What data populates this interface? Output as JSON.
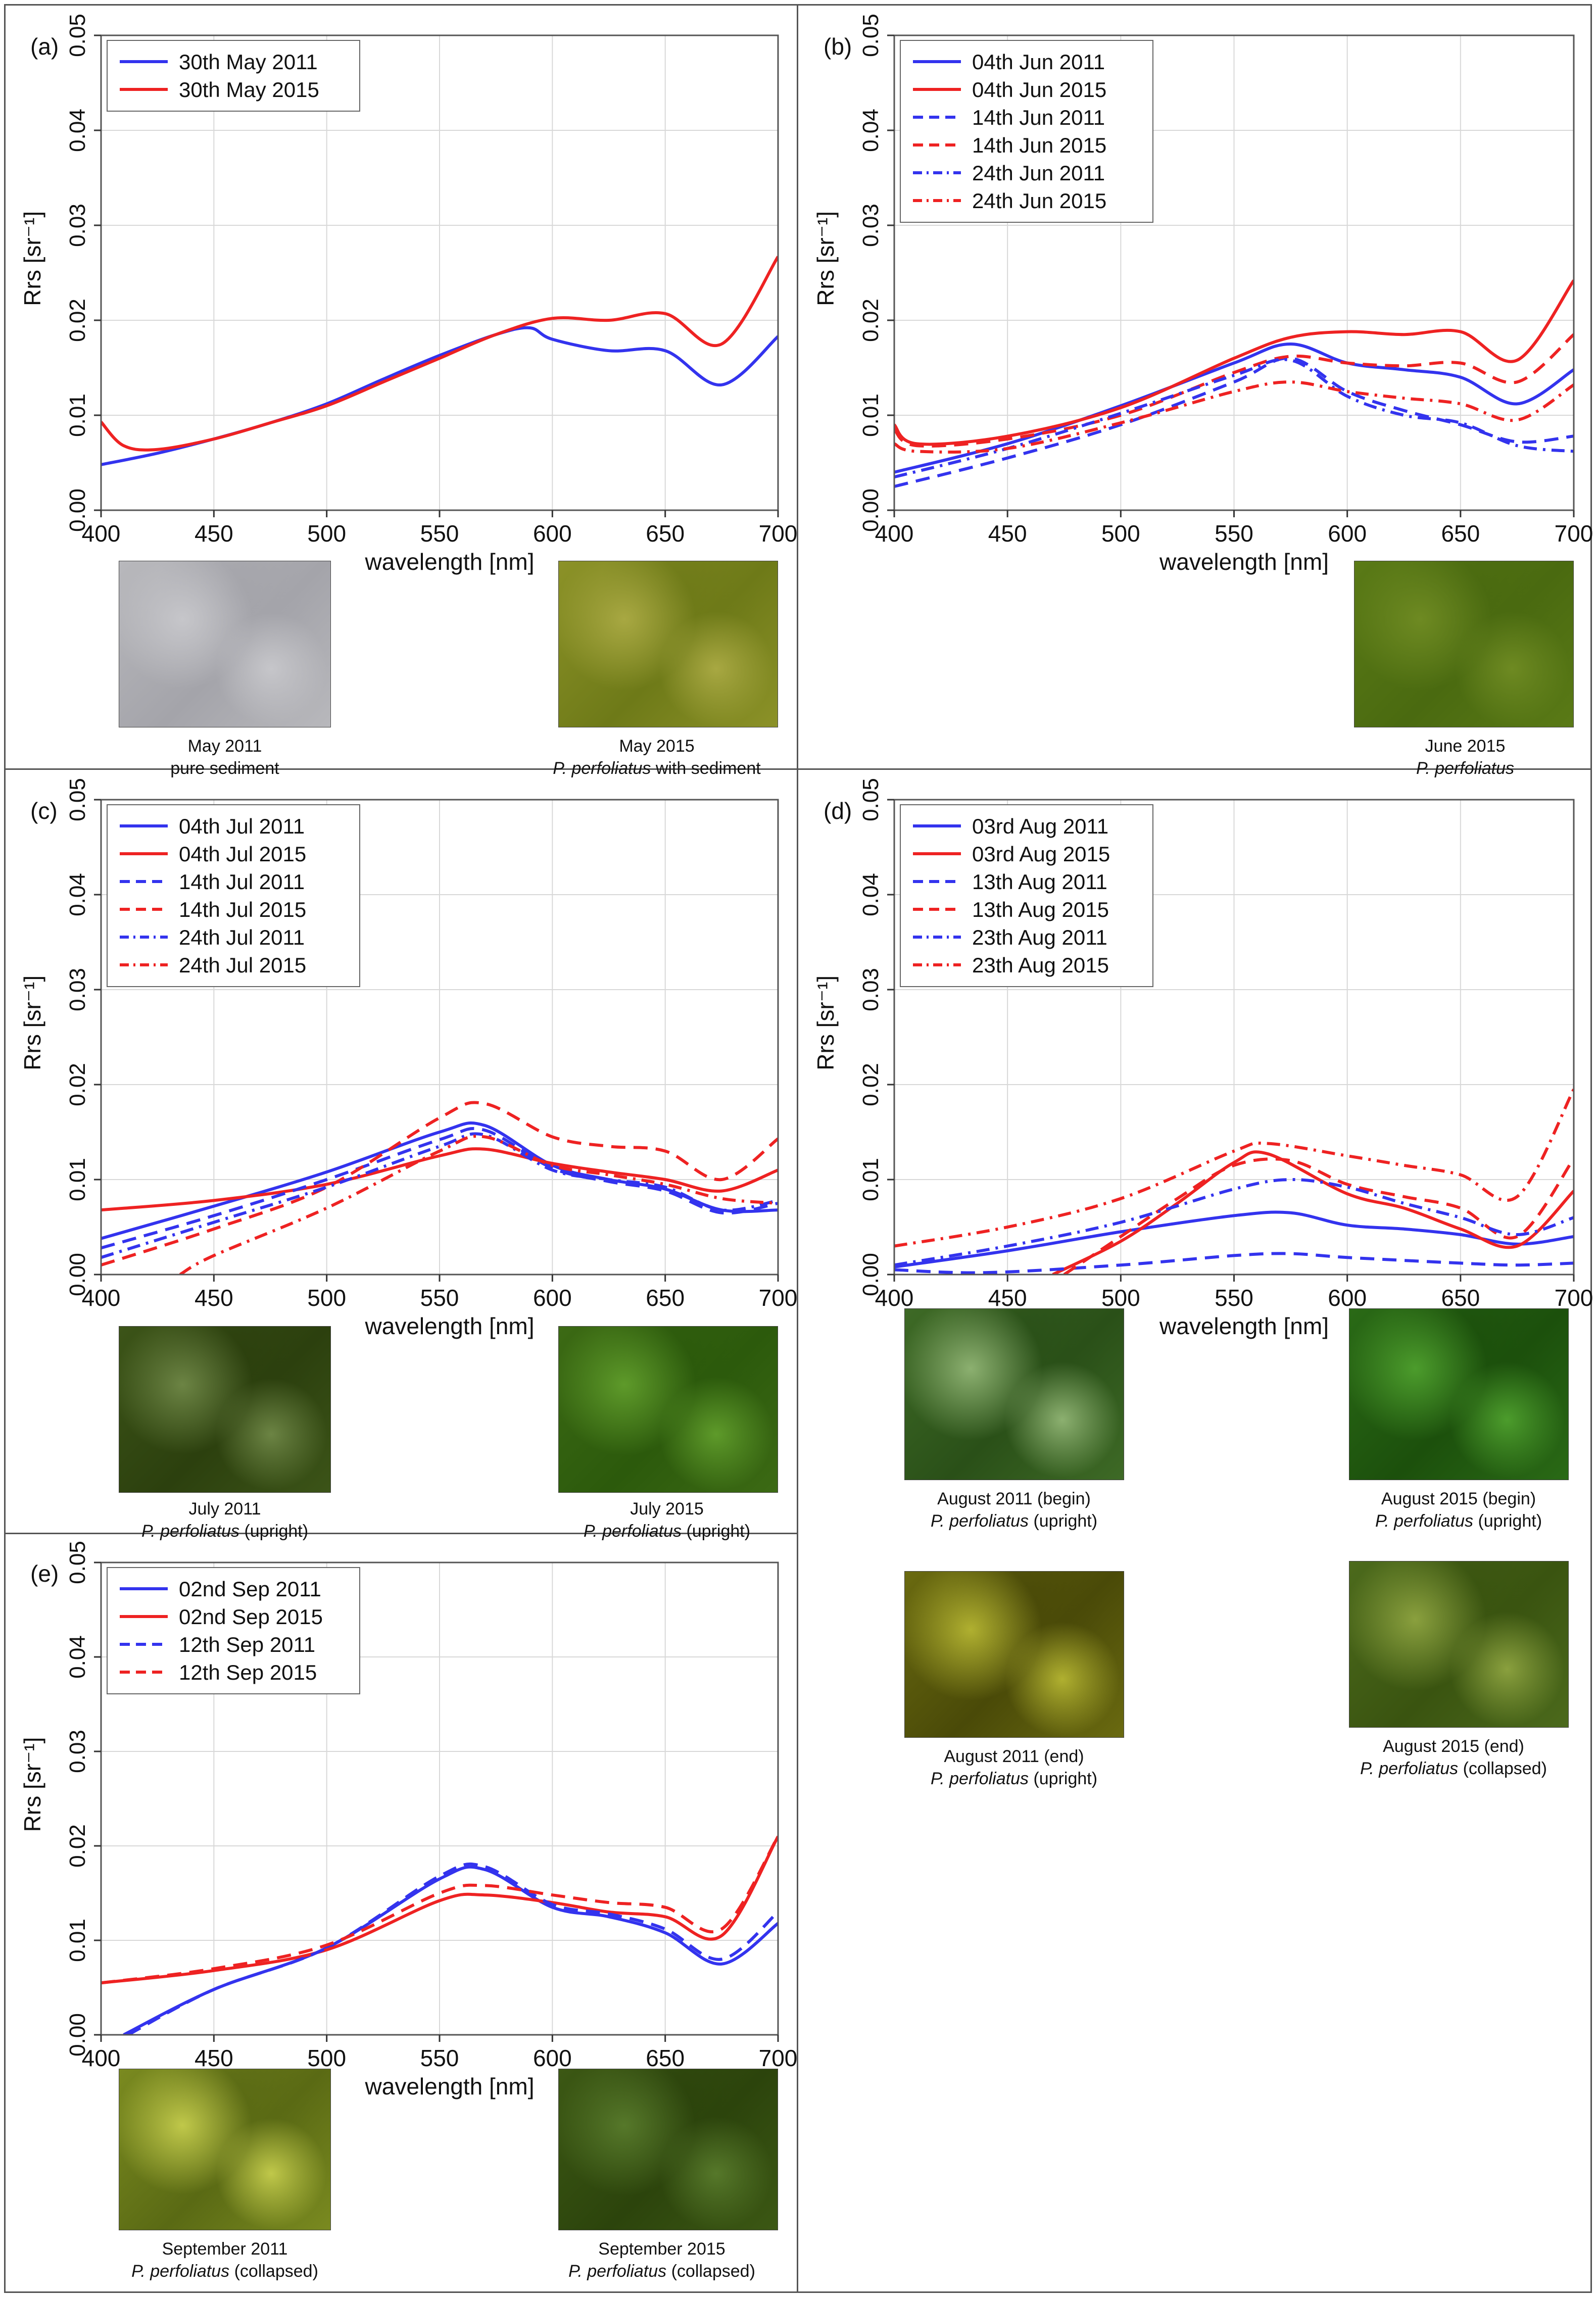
{
  "figure": {
    "axes": {
      "ylabel": "Rrs [sr⁻¹]",
      "xlabel": "wavelength [nm]",
      "xticks": [
        "400",
        "450",
        "500",
        "550",
        "600",
        "650",
        "700"
      ],
      "yticks": [
        "0.00",
        "0.01",
        "0.02",
        "0.03",
        "0.04",
        "0.05"
      ]
    },
    "colors": {
      "blue": "#3333ee",
      "red": "#ee2222",
      "grid": "#d8d8d8",
      "frame": "#555555"
    }
  },
  "chart_data": [
    {
      "panel": "(a)",
      "type": "line",
      "xlabel": "wavelength [nm]",
      "ylabel": "Rrs [sr⁻¹]",
      "xlim": [
        400,
        700
      ],
      "ylim": [
        0,
        0.05
      ],
      "grid": true,
      "legend_position": "top-left",
      "series": [
        {
          "name": "30th May 2011",
          "color": "#3333ee",
          "dash": "solid",
          "x": [
            400,
            425,
            450,
            475,
            500,
            525,
            550,
            575,
            590,
            600,
            625,
            650,
            675,
            700
          ],
          "y": [
            0.0048,
            0.006,
            0.0075,
            0.0092,
            0.0112,
            0.0138,
            0.0163,
            0.0185,
            0.0192,
            0.018,
            0.0168,
            0.0168,
            0.0132,
            0.0183
          ]
        },
        {
          "name": "30th May 2015",
          "color": "#ee2222",
          "dash": "solid",
          "x": [
            400,
            410,
            425,
            450,
            475,
            500,
            525,
            550,
            575,
            600,
            625,
            650,
            675,
            700
          ],
          "y": [
            0.0093,
            0.0068,
            0.0064,
            0.0075,
            0.0092,
            0.011,
            0.0135,
            0.016,
            0.0185,
            0.0202,
            0.02,
            0.0207,
            0.0175,
            0.0267
          ]
        }
      ]
    },
    {
      "panel": "(b)",
      "type": "line",
      "xlabel": "wavelength [nm]",
      "ylabel": "Rrs [sr⁻¹]",
      "xlim": [
        400,
        700
      ],
      "ylim": [
        0,
        0.05
      ],
      "grid": true,
      "legend_position": "top-left",
      "series": [
        {
          "name": "04th Jun 2011",
          "color": "#3333ee",
          "dash": "solid",
          "x": [
            400,
            450,
            500,
            550,
            575,
            600,
            625,
            650,
            675,
            700
          ],
          "y": [
            0.004,
            0.007,
            0.011,
            0.0155,
            0.0175,
            0.0155,
            0.0148,
            0.014,
            0.0112,
            0.0148
          ]
        },
        {
          "name": "04th Jun 2015",
          "color": "#ee2222",
          "dash": "solid",
          "x": [
            400,
            410,
            450,
            500,
            550,
            575,
            600,
            625,
            650,
            675,
            700
          ],
          "y": [
            0.009,
            0.007,
            0.0078,
            0.0108,
            0.016,
            0.0182,
            0.0188,
            0.0185,
            0.0188,
            0.0158,
            0.0242
          ]
        },
        {
          "name": "14th Jun 2011",
          "color": "#3333ee",
          "dash": "dash",
          "x": [
            400,
            450,
            500,
            550,
            575,
            600,
            625,
            650,
            675,
            700
          ],
          "y": [
            0.0025,
            0.0055,
            0.009,
            0.0135,
            0.016,
            0.0125,
            0.0105,
            0.009,
            0.0072,
            0.0078
          ]
        },
        {
          "name": "14th Jun 2015",
          "color": "#ee2222",
          "dash": "dash",
          "x": [
            400,
            410,
            450,
            500,
            550,
            575,
            600,
            625,
            650,
            675,
            700
          ],
          "y": [
            0.0085,
            0.0068,
            0.0075,
            0.01,
            0.0145,
            0.0162,
            0.0155,
            0.0152,
            0.0155,
            0.0135,
            0.0185
          ]
        },
        {
          "name": "24th Jun 2011",
          "color": "#3333ee",
          "dash": "dashdot",
          "x": [
            400,
            450,
            500,
            550,
            575,
            600,
            625,
            650,
            675,
            700
          ],
          "y": [
            0.0035,
            0.0065,
            0.0102,
            0.0142,
            0.0158,
            0.012,
            0.01,
            0.0092,
            0.0068,
            0.0062
          ]
        },
        {
          "name": "24th Jun 2015",
          "color": "#ee2222",
          "dash": "dashdot",
          "x": [
            400,
            410,
            450,
            500,
            550,
            575,
            600,
            625,
            650,
            675,
            700
          ],
          "y": [
            0.007,
            0.0062,
            0.0065,
            0.0092,
            0.0125,
            0.0135,
            0.0125,
            0.0118,
            0.0112,
            0.0095,
            0.0132
          ]
        }
      ]
    },
    {
      "panel": "(c)",
      "type": "line",
      "xlabel": "wavelength [nm]",
      "ylabel": "Rrs [sr⁻¹]",
      "xlim": [
        400,
        700
      ],
      "ylim": [
        0,
        0.05
      ],
      "grid": true,
      "legend_position": "top-left",
      "series": [
        {
          "name": "04th Jul 2011",
          "color": "#3333ee",
          "dash": "solid",
          "x": [
            400,
            450,
            500,
            550,
            570,
            600,
            625,
            650,
            675,
            700
          ],
          "y": [
            0.0038,
            0.0072,
            0.0108,
            0.015,
            0.0157,
            0.0115,
            0.01,
            0.009,
            0.0068,
            0.0068
          ]
        },
        {
          "name": "04th Jul 2015",
          "color": "#ee2222",
          "dash": "solid",
          "x": [
            400,
            450,
            500,
            550,
            570,
            600,
            625,
            650,
            675,
            700
          ],
          "y": [
            0.0068,
            0.0078,
            0.0095,
            0.0125,
            0.0132,
            0.0117,
            0.0108,
            0.01,
            0.0088,
            0.011
          ]
        },
        {
          "name": "14th Jul 2011",
          "color": "#3333ee",
          "dash": "dash",
          "x": [
            400,
            450,
            500,
            550,
            570,
            600,
            625,
            650,
            675,
            700
          ],
          "y": [
            0.0028,
            0.0062,
            0.01,
            0.0142,
            0.0152,
            0.0112,
            0.0098,
            0.0088,
            0.0065,
            0.0075
          ]
        },
        {
          "name": "14th Jul 2015",
          "color": "#ee2222",
          "dash": "dash",
          "x": [
            400,
            450,
            500,
            550,
            570,
            600,
            625,
            650,
            675,
            700
          ],
          "y": [
            0.001,
            0.0048,
            0.0092,
            0.0165,
            0.018,
            0.0145,
            0.0135,
            0.013,
            0.01,
            0.0143
          ]
        },
        {
          "name": "24th Jul 2011",
          "color": "#3333ee",
          "dash": "dashdot",
          "x": [
            400,
            450,
            500,
            550,
            570,
            600,
            625,
            650,
            675,
            700
          ],
          "y": [
            0.0018,
            0.0055,
            0.0092,
            0.0135,
            0.0147,
            0.011,
            0.01,
            0.0092,
            0.0068,
            0.0078
          ]
        },
        {
          "name": "24th Jul 2015",
          "color": "#ee2222",
          "dash": "dashdot",
          "x": [
            435,
            450,
            500,
            550,
            570,
            600,
            625,
            650,
            675,
            700
          ],
          "y": [
            0.0,
            0.002,
            0.007,
            0.013,
            0.0145,
            0.0115,
            0.0105,
            0.0095,
            0.008,
            0.0075
          ]
        }
      ]
    },
    {
      "panel": "(d)",
      "type": "line",
      "xlabel": "wavelength [nm]",
      "ylabel": "Rrs [sr⁻¹]",
      "xlim": [
        400,
        700
      ],
      "ylim": [
        0,
        0.05
      ],
      "grid": true,
      "legend_position": "top-left",
      "series": [
        {
          "name": "03rd Aug 2011",
          "color": "#3333ee",
          "dash": "solid",
          "x": [
            400,
            450,
            500,
            550,
            575,
            600,
            625,
            650,
            675,
            700
          ],
          "y": [
            0.0008,
            0.0025,
            0.0045,
            0.0062,
            0.0065,
            0.0052,
            0.0048,
            0.0042,
            0.0032,
            0.004
          ]
        },
        {
          "name": "03rd Aug 2015",
          "color": "#ee2222",
          "dash": "solid",
          "x": [
            470,
            500,
            525,
            550,
            565,
            600,
            625,
            650,
            675,
            700
          ],
          "y": [
            0.0,
            0.0035,
            0.0075,
            0.0118,
            0.0127,
            0.0085,
            0.007,
            0.0048,
            0.003,
            0.0088
          ]
        },
        {
          "name": "13th Aug 2011",
          "color": "#3333ee",
          "dash": "dash",
          "x": [
            400,
            440,
            500,
            550,
            575,
            600,
            650,
            675,
            700
          ],
          "y": [
            0.0005,
            0.0002,
            0.001,
            0.002,
            0.0022,
            0.0018,
            0.0012,
            0.001,
            0.0012
          ]
        },
        {
          "name": "13th Aug 2015",
          "color": "#ee2222",
          "dash": "dash",
          "x": [
            475,
            500,
            525,
            550,
            575,
            600,
            625,
            650,
            675,
            700
          ],
          "y": [
            0.0,
            0.004,
            0.008,
            0.0115,
            0.012,
            0.0095,
            0.0082,
            0.007,
            0.004,
            0.0122
          ]
        },
        {
          "name": "23th Aug 2011",
          "color": "#3333ee",
          "dash": "dashdot",
          "x": [
            400,
            450,
            500,
            550,
            575,
            600,
            625,
            650,
            675,
            700
          ],
          "y": [
            0.001,
            0.003,
            0.0055,
            0.009,
            0.01,
            0.0092,
            0.0075,
            0.006,
            0.0042,
            0.006
          ]
        },
        {
          "name": "23th Aug 2015",
          "color": "#ee2222",
          "dash": "dashdot",
          "x": [
            400,
            450,
            500,
            550,
            565,
            600,
            625,
            650,
            675,
            700
          ],
          "y": [
            0.003,
            0.005,
            0.008,
            0.013,
            0.0138,
            0.0125,
            0.0115,
            0.0105,
            0.0082,
            0.0195
          ]
        }
      ]
    },
    {
      "panel": "(e)",
      "type": "line",
      "xlabel": "wavelength [nm]",
      "ylabel": "Rrs [sr⁻¹]",
      "xlim": [
        400,
        700
      ],
      "ylim": [
        0,
        0.05
      ],
      "grid": true,
      "legend_position": "top-left",
      "series": [
        {
          "name": "02nd Sep 2011",
          "color": "#3333ee",
          "dash": "solid",
          "x": [
            410,
            450,
            500,
            550,
            570,
            600,
            625,
            650,
            675,
            700
          ],
          "y": [
            0.0,
            0.0048,
            0.0092,
            0.0165,
            0.0175,
            0.0135,
            0.0125,
            0.0108,
            0.0075,
            0.0118
          ]
        },
        {
          "name": "02nd Sep 2015",
          "color": "#ee2222",
          "dash": "solid",
          "x": [
            400,
            450,
            500,
            550,
            570,
            600,
            625,
            650,
            675,
            700
          ],
          "y": [
            0.0055,
            0.0068,
            0.009,
            0.0142,
            0.0148,
            0.014,
            0.013,
            0.0125,
            0.0105,
            0.021
          ]
        },
        {
          "name": "12th Sep 2011",
          "color": "#3333ee",
          "dash": "dash",
          "x": [
            412,
            450,
            500,
            550,
            570,
            600,
            625,
            650,
            675,
            700
          ],
          "y": [
            0.0,
            0.0048,
            0.0092,
            0.0168,
            0.0178,
            0.0138,
            0.0128,
            0.0112,
            0.008,
            0.013
          ]
        },
        {
          "name": "12th Sep 2015",
          "color": "#ee2222",
          "dash": "dash",
          "x": [
            400,
            450,
            500,
            550,
            570,
            600,
            625,
            650,
            675,
            700
          ],
          "y": [
            0.0055,
            0.007,
            0.0095,
            0.015,
            0.0158,
            0.0148,
            0.014,
            0.0135,
            0.0112,
            0.021
          ]
        }
      ]
    }
  ],
  "photos": {
    "a_left": {
      "title": "May 2011",
      "subtitle": "pure sediment",
      "colors": [
        "#b8b8bc",
        "#a4a4aa",
        "#c6c6ca"
      ]
    },
    "a_right": {
      "title": "May 2015",
      "species": "P. perfoliatus",
      "subtitle": "with sediment",
      "colors": [
        "#8c9228",
        "#6e7a18",
        "#a8a842"
      ]
    },
    "b_right": {
      "title": "June 2015",
      "species": "P. perfoliatus",
      "colors": [
        "#5a7a16",
        "#4a6a10",
        "#6e8a22"
      ]
    },
    "c_left": {
      "title": "July 2011",
      "species": "P. perfoliatus",
      "subtitle": "(upright)",
      "colors": [
        "#3c5418",
        "#2c400e",
        "#6c8444"
      ]
    },
    "c_right": {
      "title": "July 2015",
      "species": "P. perfoliatus",
      "subtitle": "(upright)",
      "colors": [
        "#3c6a14",
        "#2c5a0c",
        "#5e9a2a"
      ]
    },
    "d_top_left": {
      "title": "August 2011 (begin)",
      "species": "P. perfoliatus",
      "subtitle": "(upright)",
      "colors": [
        "#3e6a26",
        "#2a5018",
        "#8cb070"
      ]
    },
    "d_top_right": {
      "title": "August 2015 (begin)",
      "species": "P. perfoliatus",
      "subtitle": "(upright)",
      "colors": [
        "#2a6a16",
        "#1c500c",
        "#4c9c2c"
      ]
    },
    "d_bot_left": {
      "title": "August 2011 (end)",
      "species": "P. perfoliatus",
      "subtitle": "(upright)",
      "colors": [
        "#6a6a10",
        "#4a4a08",
        "#b0b030"
      ]
    },
    "d_bot_right": {
      "title": "August 2015 (end)",
      "species": "P. perfoliatus",
      "subtitle": "(collapsed)",
      "colors": [
        "#4c6a1c",
        "#3a5410",
        "#8aa03e"
      ]
    },
    "e_left": {
      "title": "September 2011",
      "species": "P. perfoliatus",
      "subtitle": "(collapsed)",
      "colors": [
        "#7a8a20",
        "#5a6a14",
        "#c0c84a"
      ]
    },
    "e_right": {
      "title": "September 2015",
      "species": "P. perfoliatus",
      "subtitle": "(collapsed)",
      "colors": [
        "#3c5814",
        "#2c440c",
        "#56782a"
      ]
    }
  }
}
